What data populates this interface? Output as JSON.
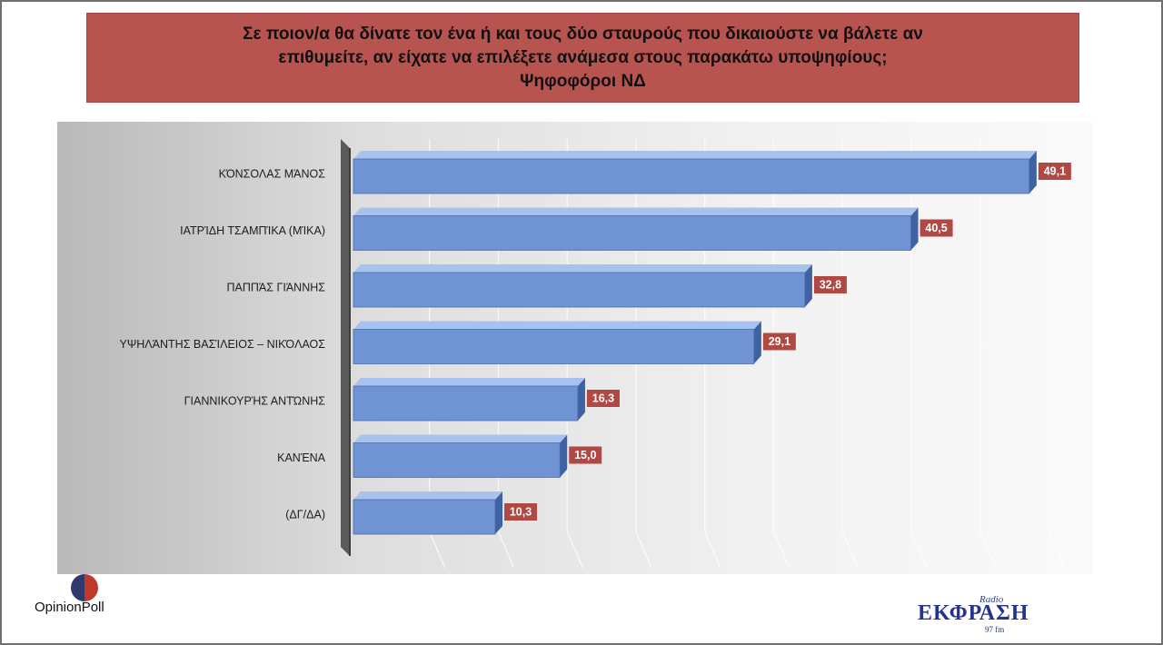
{
  "title": {
    "line1": "Σε ποιον/α θα δίνατε τον ένα ή και τους δύο σταυρούς που δικαιούστε να βάλετε αν",
    "line2": "επιθυμείτε, αν είχατε να επιλέξετε ανάμεσα στους παρακάτω υποψηφίους;",
    "line3": "Ψηφοφόροι ΝΔ"
  },
  "colors": {
    "title_bg": "#b85450",
    "bar_fill": "#6f93d3",
    "bar_top": "#a8c2ee",
    "bar_side": "#3f62a3",
    "label_bg": "#b04844"
  },
  "chart_data": {
    "type": "bar",
    "orientation": "horizontal",
    "categories": [
      "ΚΌΝΣΟΛΑΣ ΜΆΝΟΣ",
      "ΙΑΤΡΊΔΗ ΤΣΑΜΠΊΚΑ (ΜΊΚΑ)",
      "ΠΑΠΠΆΣ ΓΙΆΝΝΗΣ",
      "ΥΨΗΛΆΝΤΗΣ ΒΑΣΊΛΕΙΟΣ – ΝΙΚΌΛΑΟΣ",
      "ΓΙΑΝΝΙΚΟΥΡΉΣ ΑΝΤΏΝΗΣ",
      "ΚΑΝΈΝΑ",
      "(ΔΓ/ΔΑ)"
    ],
    "values": [
      49.1,
      40.5,
      32.8,
      29.1,
      16.3,
      15.0,
      10.3
    ],
    "value_labels": [
      "49,1",
      "40,5",
      "32,8",
      "29,1",
      "16,3",
      "15,0",
      "10,3"
    ],
    "xlim": [
      0,
      50
    ],
    "grid": true,
    "style": "3d"
  },
  "logos": {
    "left": "OpinionPoll",
    "right_top": "Radio",
    "right_name": "ΕΚΦΡΑΣΗ",
    "right_freq": "97 fm"
  }
}
